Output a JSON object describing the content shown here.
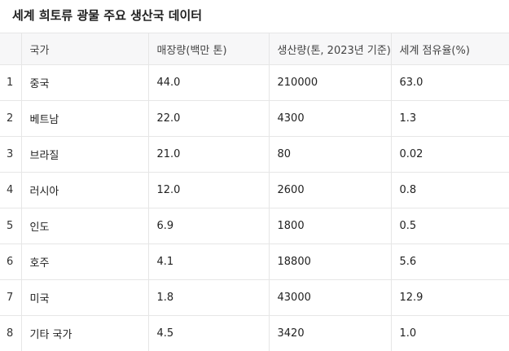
{
  "title": "세계 희토류 광물 주요 생산국 데이터",
  "table": {
    "headers": [
      "",
      "국가",
      "매장량(백만 톤)",
      "생산량(톤, 2023년 기준)",
      "세계 점유율(%)"
    ],
    "rows": [
      {
        "index": "1",
        "country": "중국",
        "reserves": "44.0",
        "production": "210000",
        "share": "63.0"
      },
      {
        "index": "2",
        "country": "베트남",
        "reserves": "22.0",
        "production": "4300",
        "share": "1.3"
      },
      {
        "index": "3",
        "country": "브라질",
        "reserves": "21.0",
        "production": "80",
        "share": "0.02"
      },
      {
        "index": "4",
        "country": "러시아",
        "reserves": "12.0",
        "production": "2600",
        "share": "0.8"
      },
      {
        "index": "5",
        "country": "인도",
        "reserves": "6.9",
        "production": "1800",
        "share": "0.5"
      },
      {
        "index": "6",
        "country": "호주",
        "reserves": "4.1",
        "production": "18800",
        "share": "5.6"
      },
      {
        "index": "7",
        "country": "미국",
        "reserves": "1.8",
        "production": "43000",
        "share": "12.9"
      },
      {
        "index": "8",
        "country": "기타 국가",
        "reserves": "4.5",
        "production": "3420",
        "share": "1.0"
      }
    ]
  }
}
